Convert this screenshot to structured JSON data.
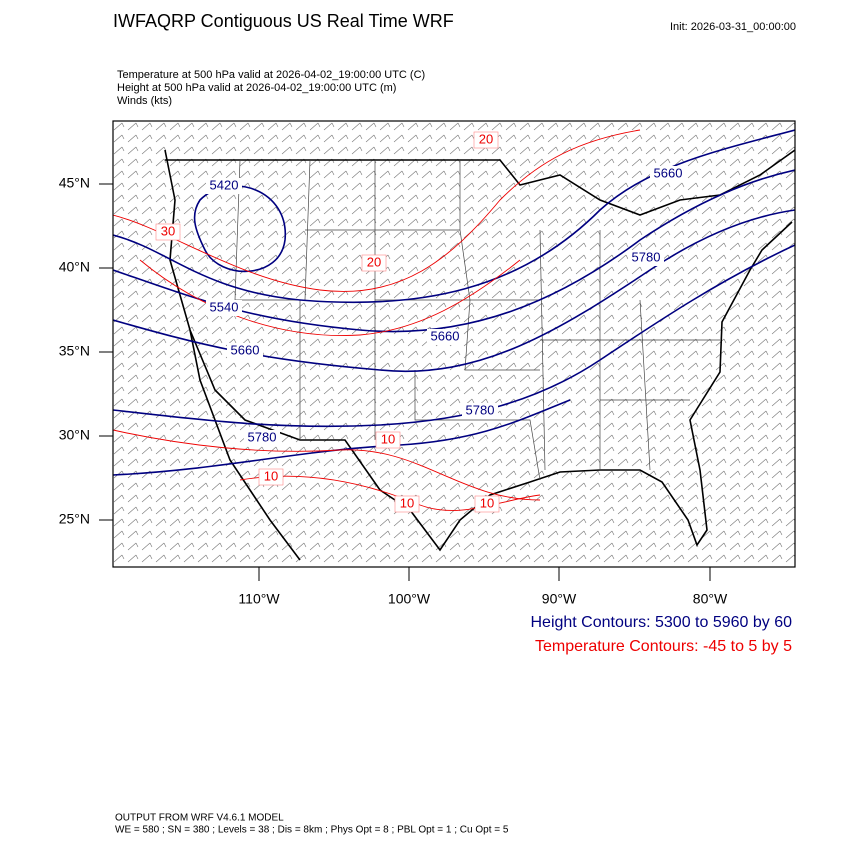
{
  "header": {
    "title": "IWFAQRP Contiguous US Real Time WRF",
    "init": "Init: 2026-03-31_00:00:00"
  },
  "fields": [
    "Temperature at 500 hPa valid at 2026-04-02_19:00:00 UTC   (C)",
    "Height at 500 hPa valid at 2026-04-02_19:00:00 UTC   (m)",
    "Winds   (kts)"
  ],
  "map": {
    "lat_labels": [
      "45°N",
      "40°N",
      "35°N",
      "30°N",
      "25°N"
    ],
    "lon_labels": [
      "110°W",
      "100°W",
      "90°W",
      "80°W"
    ],
    "height_labels": [
      "5420",
      "5540",
      "5660",
      "5660",
      "5780",
      "5780",
      "5660",
      "5780"
    ],
    "temperature_labels": [
      "20",
      "30",
      "20",
      "10",
      "10",
      "10",
      "10"
    ]
  },
  "legend": {
    "height": "Height Contours: 5300 to 5960 by 60",
    "temperature": "Temperature Contours: -45 to 5 by 5"
  },
  "footer": {
    "model": "OUTPUT FROM WRF V4.6.1 MODEL",
    "settings": "WE = 580 ; SN = 380 ; Levels = 38 ; Dis = 8km ; Phys Opt = 8 ; PBL Opt = 1 ; Cu Opt = 5"
  }
}
